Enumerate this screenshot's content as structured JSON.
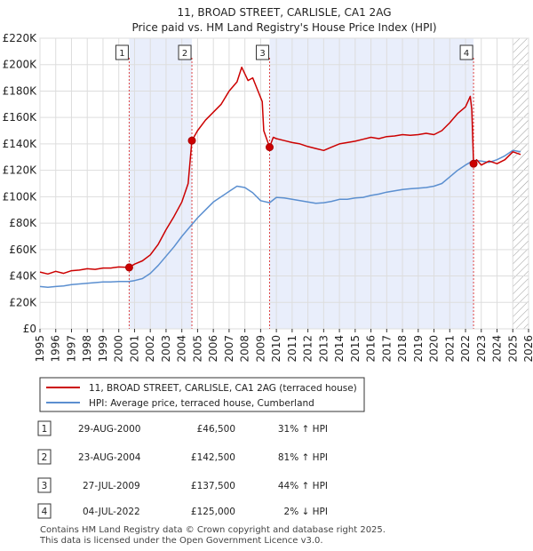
{
  "chart_data": {
    "type": "line",
    "title": "11, BROAD STREET, CARLISLE, CA1 2AG",
    "subtitle": "Price paid vs. HM Land Registry's House Price Index (HPI)",
    "xlabel": "",
    "ylabel": "",
    "xlim": [
      1995,
      2026
    ],
    "ylim": [
      0,
      220000
    ],
    "x_ticks": [
      1995,
      1996,
      1997,
      1998,
      1999,
      2000,
      2001,
      2002,
      2003,
      2004,
      2005,
      2006,
      2007,
      2008,
      2009,
      2010,
      2011,
      2012,
      2013,
      2014,
      2015,
      2016,
      2017,
      2018,
      2019,
      2020,
      2021,
      2022,
      2023,
      2024,
      2025,
      2026
    ],
    "y_ticks": [
      0,
      20000,
      40000,
      60000,
      80000,
      100000,
      120000,
      140000,
      160000,
      180000,
      200000,
      220000
    ],
    "y_tick_labels": [
      "£0",
      "£20K",
      "£40K",
      "£60K",
      "£80K",
      "£100K",
      "£120K",
      "£140K",
      "£160K",
      "£180K",
      "£200K",
      "£220K"
    ],
    "grid": true,
    "series": [
      {
        "name": "11, BROAD STREET, CARLISLE, CA1 2AG (terraced house)",
        "color": "#cc0000",
        "x": [
          1995.0,
          1995.5,
          1996.0,
          1996.5,
          1997.0,
          1997.5,
          1998.0,
          1998.5,
          1999.0,
          1999.5,
          2000.0,
          2000.66,
          2001.0,
          2001.5,
          2002.0,
          2002.5,
          2003.0,
          2003.5,
          2004.0,
          2004.4,
          2004.64,
          2005.0,
          2005.5,
          2006.0,
          2006.5,
          2007.0,
          2007.5,
          2007.8,
          2008.2,
          2008.5,
          2008.9,
          2009.1,
          2009.2,
          2009.57,
          2009.8,
          2010.0,
          2010.5,
          2011.0,
          2011.5,
          2012.0,
          2012.5,
          2013.0,
          2013.5,
          2014.0,
          2014.5,
          2015.0,
          2015.5,
          2016.0,
          2016.5,
          2017.0,
          2017.5,
          2018.0,
          2018.5,
          2019.0,
          2019.5,
          2020.0,
          2020.5,
          2021.0,
          2021.5,
          2022.0,
          2022.3,
          2022.4,
          2022.51,
          2022.7,
          2023.0,
          2023.5,
          2024.0,
          2024.5,
          2025.0,
          2025.5
        ],
        "values": [
          43000,
          41500,
          43500,
          42000,
          44000,
          44500,
          45500,
          45000,
          46000,
          46000,
          46800,
          46500,
          49000,
          51500,
          56000,
          64000,
          75000,
          85000,
          96000,
          110000,
          142500,
          150000,
          158000,
          164000,
          170000,
          180000,
          187000,
          198000,
          188000,
          190000,
          178000,
          172000,
          150000,
          137500,
          145000,
          144000,
          142500,
          141000,
          140000,
          138000,
          136500,
          135000,
          137500,
          140000,
          141000,
          142000,
          143500,
          145000,
          144000,
          145500,
          146000,
          147000,
          146500,
          147000,
          148000,
          147000,
          150000,
          156000,
          163000,
          168000,
          176000,
          166000,
          125000,
          128000,
          124000,
          127000,
          125000,
          128000,
          134000,
          132000
        ]
      },
      {
        "name": "HPI: Average price, terraced house, Cumberland",
        "color": "#5b8fd0",
        "x": [
          1995.0,
          1995.5,
          1996.0,
          1996.5,
          1997.0,
          1997.5,
          1998.0,
          1998.5,
          1999.0,
          1999.5,
          2000.0,
          2000.66,
          2001.0,
          2001.5,
          2002.0,
          2002.5,
          2003.0,
          2003.5,
          2004.0,
          2004.64,
          2005.0,
          2005.5,
          2006.0,
          2006.5,
          2007.0,
          2007.5,
          2008.0,
          2008.5,
          2009.0,
          2009.57,
          2010.0,
          2010.5,
          2011.0,
          2011.5,
          2012.0,
          2012.5,
          2013.0,
          2013.5,
          2014.0,
          2014.5,
          2015.0,
          2015.5,
          2016.0,
          2016.5,
          2017.0,
          2017.5,
          2018.0,
          2018.5,
          2019.0,
          2019.5,
          2020.0,
          2020.5,
          2021.0,
          2021.5,
          2022.0,
          2022.51,
          2023.0,
          2023.5,
          2024.0,
          2024.5,
          2025.0,
          2025.5
        ],
        "values": [
          32000,
          31500,
          32000,
          32500,
          33500,
          34000,
          34500,
          35000,
          35500,
          35500,
          35800,
          35800,
          36500,
          38000,
          42000,
          48000,
          55000,
          62000,
          70000,
          79000,
          84000,
          90000,
          96000,
          100000,
          104000,
          108000,
          107000,
          103000,
          97000,
          95500,
          99500,
          99000,
          98000,
          97000,
          96000,
          95000,
          95500,
          96500,
          98000,
          98000,
          99000,
          99500,
          101000,
          102000,
          103500,
          104500,
          105500,
          106000,
          106500,
          107000,
          108000,
          110000,
          115000,
          120000,
          124000,
          127500,
          127000,
          126000,
          128000,
          131000,
          135000,
          134000
        ]
      }
    ],
    "markers": [
      {
        "label": "1",
        "x": 2000.66,
        "value": 46500
      },
      {
        "label": "2",
        "x": 2004.64,
        "value": 142500
      },
      {
        "label": "3",
        "x": 2009.57,
        "value": 137500
      },
      {
        "label": "4",
        "x": 2022.51,
        "value": 125000
      }
    ],
    "shaded_spans": [
      [
        2000.66,
        2004.64
      ],
      [
        2009.57,
        2022.51
      ]
    ],
    "hatched_from": 2025.0
  },
  "legend": {
    "property_label": "11, BROAD STREET, CARLISLE, CA1 2AG (terraced house)",
    "hpi_label": "HPI: Average price, terraced house, Cumberland"
  },
  "transactions": [
    {
      "num": "1",
      "date": "29-AUG-2000",
      "price": "£46,500",
      "hpi": "31% ↑ HPI"
    },
    {
      "num": "2",
      "date": "23-AUG-2004",
      "price": "£142,500",
      "hpi": "81% ↑ HPI"
    },
    {
      "num": "3",
      "date": "27-JUL-2009",
      "price": "£137,500",
      "hpi": "44% ↑ HPI"
    },
    {
      "num": "4",
      "date": "04-JUL-2022",
      "price": "£125,000",
      "hpi": "2% ↓ HPI"
    }
  ],
  "footer": {
    "line1": "Contains HM Land Registry data © Crown copyright and database right 2025.",
    "line2": "This data is licensed under the Open Government Licence v3.0."
  }
}
